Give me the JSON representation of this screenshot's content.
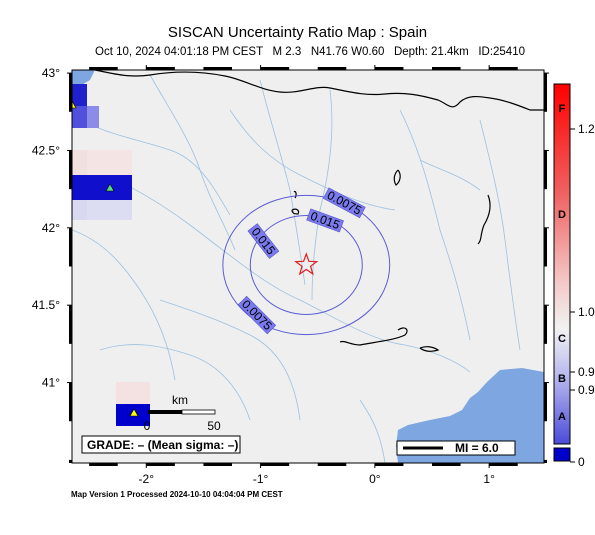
{
  "header": {
    "title": "SISCAN Uncertainty Ratio Map : Spain",
    "subtitle": "Oct 10, 2024 04:01:18 PM CEST   M 2.3   N41.76 W0.60   Depth: 21.4km   ID:25410"
  },
  "footer": {
    "text": "Map Version 1 Processed 2024-10-10 04:04:04 PM CEST"
  },
  "map": {
    "lon_range": [
      -2.65,
      1.48
    ],
    "lat_range": [
      40.48,
      43.02
    ],
    "lon_ticks": [
      {
        "value": -2,
        "label": "-2°"
      },
      {
        "value": -1,
        "label": "-1°"
      },
      {
        "value": 0,
        "label": "0°"
      },
      {
        "value": 1,
        "label": "1°"
      }
    ],
    "lat_ticks": [
      {
        "value": 43,
        "label": "43°"
      },
      {
        "value": 42.5,
        "label": "42.5°"
      },
      {
        "value": 42,
        "label": "42°"
      },
      {
        "value": 41.5,
        "label": "41.5°"
      },
      {
        "value": 41,
        "label": "41°"
      }
    ],
    "epicenter": {
      "lon": -0.6,
      "lat": 41.76
    },
    "contours": [
      {
        "label": "0.015",
        "rx_deg": 0.49,
        "ry_deg": 0.32
      },
      {
        "label": "0.0075",
        "rx_deg": 0.73,
        "ry_deg": 0.45
      }
    ],
    "scale_bar": {
      "unit": "km",
      "start_label": "0",
      "end_label": "50"
    },
    "grade_box": "GRADE: – (Mean sigma: –)",
    "legend_mmi": "MI = 6.0",
    "land_color": "#efefef",
    "sea_color": "#7ea6e0",
    "contour_color": "#5b5bd6"
  },
  "colorbar": {
    "letters": [
      "F",
      "D",
      "C",
      "B",
      "A"
    ],
    "value_labels": [
      "1.2",
      "1.0",
      "0.9",
      "0.9",
      "0"
    ],
    "bottom_color": "#0000cc",
    "top_color": "#ff0000"
  }
}
